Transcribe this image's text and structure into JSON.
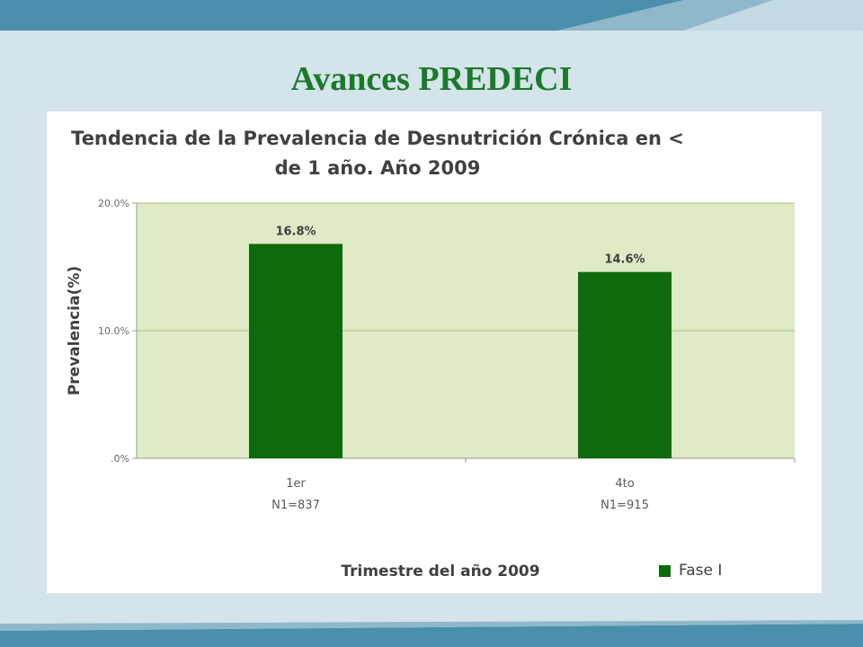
{
  "slide": {
    "title": "Avances PREDECI"
  },
  "colors": {
    "background": "#d5e3ea",
    "band_dark": "#4a8fab",
    "band_light": "#8fb8cb",
    "title_green": "#1a7a2a",
    "plot_bg": "#dfeac6",
    "bar_fill": "#0d6b0d",
    "gridline": "#a8c27a"
  },
  "chart_data": {
    "type": "bar",
    "title_lines": [
      "Tendencia de la Prevalencia de Desnutrición Crónica en <",
      "de 1 año. Año 2009"
    ],
    "xlabel": "Trimestre del año 2009",
    "ylabel": "Prevalencia(%)",
    "categories": [
      {
        "label": "1er",
        "sublabel": "N1=837"
      },
      {
        "label": "4to",
        "sublabel": "N1=915"
      }
    ],
    "series": [
      {
        "name": "Fase I",
        "values": [
          16.8,
          14.6
        ],
        "labels": [
          "16.8%",
          "14.6%"
        ]
      }
    ],
    "ylim": [
      0,
      20
    ],
    "yticks": [
      {
        "value": 0,
        "label": ".0%"
      },
      {
        "value": 10,
        "label": "10.0%"
      },
      {
        "value": 20,
        "label": "20.0%"
      }
    ],
    "grid": true,
    "legend_position": "bottom-right"
  }
}
